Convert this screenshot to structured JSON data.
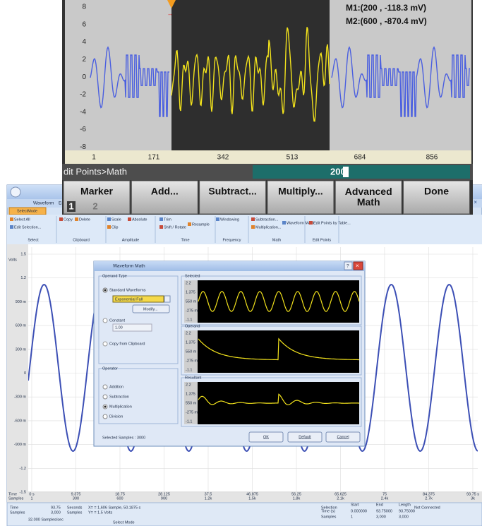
{
  "instrument": {
    "yticks": [
      "8",
      "6",
      "4",
      "2",
      "0",
      "-2",
      "-4",
      "-6",
      "-8"
    ],
    "xticks": [
      "1",
      "171",
      "342",
      "513",
      "684",
      "856"
    ],
    "markers": [
      "M1:(200 , -118.3 mV)",
      "M2:(600 , -870.4 mV)"
    ],
    "breadcrumb": "dit Points>Math",
    "input": "200",
    "softkeys": [
      {
        "label": "Marker",
        "options": [
          "1",
          "2"
        ]
      },
      {
        "label": "Add..."
      },
      {
        "label": "Subtract..."
      },
      {
        "label": "Multiply..."
      },
      {
        "label": "Advanced Math"
      },
      {
        "label": "Done"
      }
    ]
  },
  "app": {
    "tabs": [
      "Waveform",
      "Ed"
    ],
    "mode_button": "SelectMode",
    "ribbon": {
      "buttons": [
        "Select All",
        "Edit Selection...",
        "Copy",
        "Delete",
        "Scale",
        "Absolute",
        "Clip",
        "Trim",
        "Shift / Rotate",
        "Resample",
        "Windowing",
        "Subtraction...",
        "Multiplication...",
        "Waveform Math...",
        "Edit Points by Table..."
      ],
      "groups": [
        "Select",
        "Clipboard",
        "Amplitude",
        "Time",
        "Frequency",
        "Math",
        "Edit Points"
      ]
    },
    "chart": {
      "y_unit": "Volts",
      "yticks": [
        "1.5",
        "1.2",
        "900 m",
        "600 m",
        "300 m",
        "0",
        "-300 m",
        "-600 m",
        "-900 m",
        "-1.2",
        "-1.5"
      ],
      "x_time_label": "Time",
      "x_samples_label": "Samples",
      "time_ticks": [
        "0 s",
        "9.375",
        "18.75",
        "28.125",
        "37.5",
        "46.875",
        "56.25",
        "65.625",
        "75",
        "84.375",
        "93.75 s"
      ],
      "sample_ticks": [
        "1",
        "300",
        "600",
        "900",
        "1.2k",
        "1.5k",
        "1.8k",
        "2.1k",
        "2.4k",
        "2.7k",
        "3k"
      ]
    },
    "dialog": {
      "title": "Waveform Math",
      "operand_type": "Operand Type",
      "standard": "Standard Waveforms",
      "waveform": "Exponential Fall",
      "modify": "Modify...",
      "constant": "Constant",
      "constant_value": "1.00",
      "clipboard": "Copy from Clipboard",
      "operator": "Operator",
      "operators": [
        "Addition",
        "Subtraction",
        "Multiplication",
        "Division"
      ],
      "selected_samples": "Selected Samples : 3000",
      "panels": [
        "Selected",
        "Operand",
        "Resultant"
      ],
      "panel_ticks": [
        "2.2",
        "1.375",
        "550 m",
        "-275 m",
        "-1.1"
      ],
      "buttons": [
        "OK",
        "Default",
        "Cancel"
      ]
    },
    "status": {
      "time_label": "Time",
      "time_value": "93.75",
      "time_unit": "Seconds",
      "samples_label": "Samples",
      "samples_value": "3,000",
      "samples_unit": "Samples",
      "rate": "32.000 Samples/sec",
      "x_readout": "X= = 1,606 Sample, 50.1875 s",
      "y_readout": "Y= = 1.5 Volts",
      "mode": "Select Mode",
      "selection": "Selection",
      "columns": [
        "Start",
        "End",
        "Length"
      ],
      "rows": [
        {
          "label": "Time (s)",
          "values": [
            "0.000000",
            "93.75000",
            "93.75000"
          ]
        },
        {
          "label": "Samples",
          "values": [
            "1",
            "3,000",
            "3,000"
          ]
        }
      ],
      "connection": "Not Connected"
    }
  }
}
